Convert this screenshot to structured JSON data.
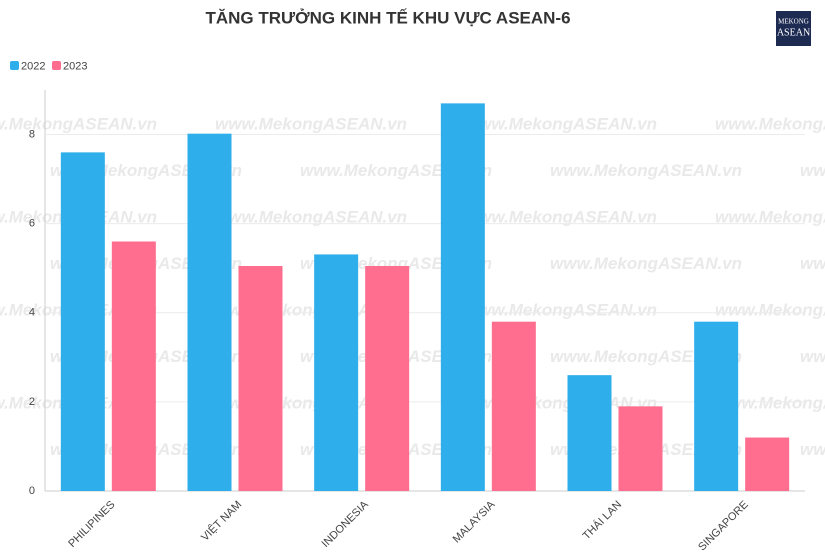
{
  "chart_data": {
    "type": "bar",
    "title": "TĂNG TRƯỞNG KINH TẾ KHU VỰC ASEAN-6",
    "logo": [
      "MEKONG",
      "ASEAN"
    ],
    "watermark": "www.MekongASEAN.vn",
    "categories": [
      "PHILIPINES",
      "VIỆT NAM",
      "INDONESIA",
      "MALAYSIA",
      "THÁI LAN",
      "SINGAPORE"
    ],
    "series": [
      {
        "name": "2022",
        "color": "#2eaeea",
        "values": [
          7.6,
          8.02,
          5.31,
          8.7,
          2.6,
          3.8
        ]
      },
      {
        "name": "2023",
        "color": "#ff6e8f",
        "values": [
          5.6,
          5.05,
          5.05,
          3.8,
          1.9,
          1.2
        ]
      }
    ],
    "ylim": [
      0,
      9
    ],
    "yticks": [
      0,
      2,
      4,
      6,
      8
    ],
    "grid": true,
    "legend": "top-left"
  }
}
